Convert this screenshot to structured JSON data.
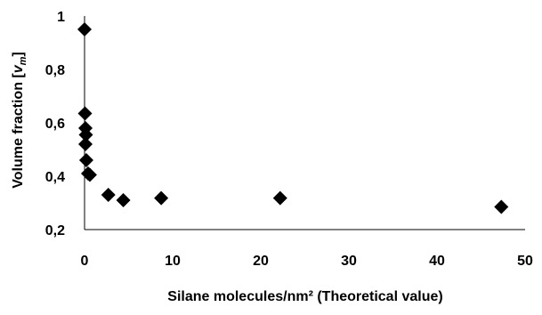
{
  "chart_data": {
    "type": "scatter",
    "title": "",
    "xlabel": "Silane molecules/nm² (Theoretical value)",
    "ylabel_main": "Volume fraction [",
    "ylabel_var": "v",
    "ylabel_sub": "m",
    "ylabel_close": "]",
    "xlim": [
      0,
      50
    ],
    "ylim": [
      0.2,
      1.0
    ],
    "x_ticks": [
      0,
      10,
      20,
      30,
      40,
      50
    ],
    "x_tick_labels": [
      "0",
      "10",
      "20",
      "30",
      "40",
      "50"
    ],
    "y_ticks": [
      0.2,
      0.4,
      0.6,
      0.8,
      1.0
    ],
    "y_tick_labels": [
      "0,2",
      "0,4",
      "0,6",
      "0,8",
      "1"
    ],
    "grid": false,
    "marker": "diamond",
    "marker_color": "#000000",
    "series": [
      {
        "points": [
          {
            "x": 0.0,
            "y": 0.95
          },
          {
            "x": 0.05,
            "y": 0.635
          },
          {
            "x": 0.1,
            "y": 0.58
          },
          {
            "x": 0.15,
            "y": 0.555
          },
          {
            "x": 0.1,
            "y": 0.52
          },
          {
            "x": 0.2,
            "y": 0.46
          },
          {
            "x": 0.4,
            "y": 0.41
          },
          {
            "x": 0.6,
            "y": 0.405
          },
          {
            "x": 2.7,
            "y": 0.33
          },
          {
            "x": 4.4,
            "y": 0.31
          },
          {
            "x": 8.7,
            "y": 0.318
          },
          {
            "x": 22.2,
            "y": 0.318
          },
          {
            "x": 47.3,
            "y": 0.285
          }
        ]
      }
    ]
  }
}
